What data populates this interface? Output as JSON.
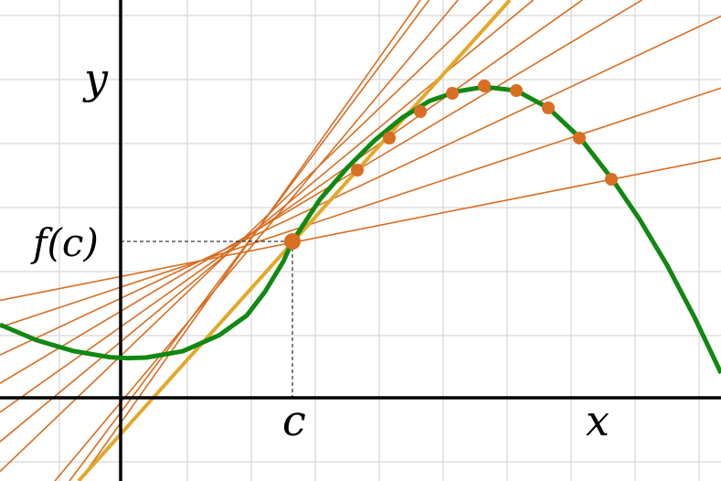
{
  "labels": {
    "y_axis": "y",
    "x_axis": "x",
    "point_c": "c",
    "value_fc": "f(c)"
  },
  "colors": {
    "background": "#ffffff",
    "grid": "#dddddd",
    "axes": "#000000",
    "curve": "#118811",
    "secants": "#d86e22",
    "tangent": "#e2a82a",
    "points": "#d86e22",
    "guide": "#000000"
  }
}
